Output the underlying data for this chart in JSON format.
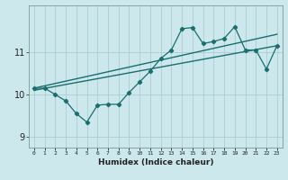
{
  "title": "",
  "xlabel": "Humidex (Indice chaleur)",
  "bg_color": "#cce8ec",
  "grid_color": "#aacdd4",
  "line_color": "#1a6e6e",
  "xlim": [
    -0.5,
    23.5
  ],
  "ylim": [
    8.75,
    12.1
  ],
  "yticks": [
    9,
    10,
    11
  ],
  "xtick_labels": [
    "0",
    "1",
    "2",
    "3",
    "4",
    "5",
    "6",
    "7",
    "8",
    "9",
    "10",
    "11",
    "12",
    "13",
    "14",
    "15",
    "16",
    "17",
    "18",
    "19",
    "20",
    "21",
    "22",
    "23"
  ],
  "data_line": [
    [
      0,
      10.15
    ],
    [
      1,
      10.15
    ],
    [
      2,
      10.0
    ],
    [
      3,
      9.85
    ],
    [
      4,
      9.55
    ],
    [
      5,
      9.35
    ],
    [
      6,
      9.75
    ],
    [
      7,
      9.77
    ],
    [
      8,
      9.77
    ],
    [
      9,
      10.05
    ],
    [
      10,
      10.3
    ],
    [
      11,
      10.55
    ],
    [
      12,
      10.85
    ],
    [
      13,
      11.05
    ],
    [
      14,
      11.55
    ],
    [
      15,
      11.58
    ],
    [
      16,
      11.2
    ],
    [
      17,
      11.25
    ],
    [
      18,
      11.32
    ],
    [
      19,
      11.6
    ],
    [
      20,
      11.05
    ],
    [
      21,
      11.05
    ],
    [
      22,
      10.6
    ],
    [
      23,
      11.15
    ]
  ],
  "trend_line1": [
    [
      0,
      10.1
    ],
    [
      23,
      11.15
    ]
  ],
  "trend_line2": [
    [
      0,
      10.15
    ],
    [
      23,
      11.42
    ]
  ]
}
